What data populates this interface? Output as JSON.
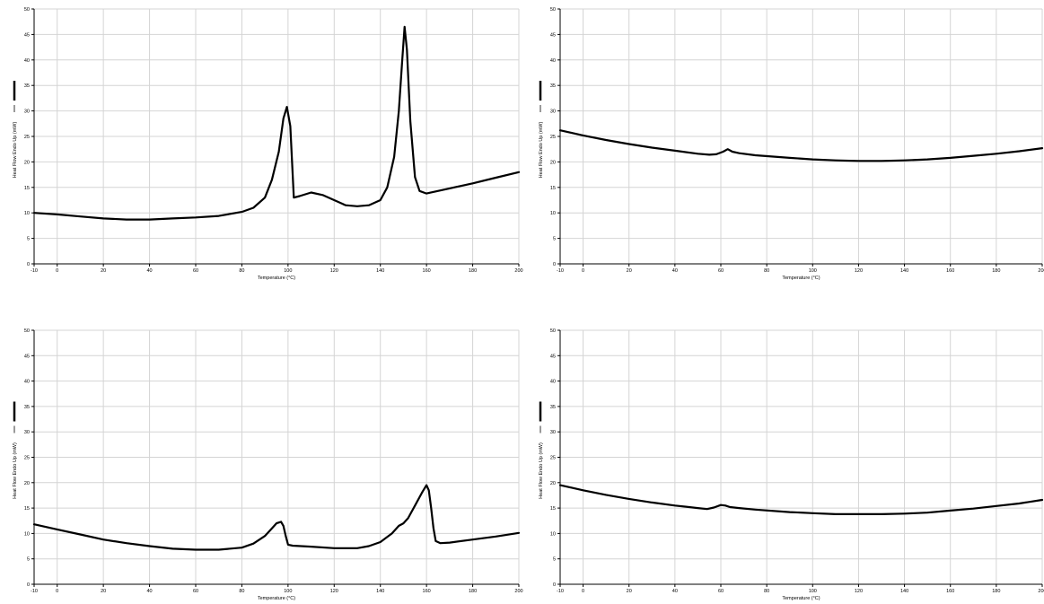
{
  "chart_data": [
    {
      "type": "line",
      "xlabel": "Temperature (°C)",
      "ylabel": "Heat Flow Endo Up (mW)",
      "xlim": [
        -10,
        200
      ],
      "ylim": [
        0,
        50
      ],
      "x_ticks": [
        "-10",
        "0",
        "20",
        "40",
        "60",
        "80",
        "100",
        "120",
        "140",
        "160",
        "180",
        "200"
      ],
      "y_ticks": [
        "0",
        "5",
        "10",
        "15",
        "20",
        "25",
        "30",
        "35",
        "40",
        "45",
        "50"
      ],
      "grid": true,
      "color": "#000000",
      "series": [
        {
          "x": [
            -10,
            0,
            10,
            20,
            30,
            40,
            50,
            60,
            70,
            80,
            85,
            90,
            93,
            96,
            98,
            99.5,
            101,
            102.5,
            105,
            110,
            115,
            120,
            125,
            130,
            135,
            140,
            143,
            146,
            148,
            149.5,
            150.5,
            151.5,
            153,
            155,
            157,
            160,
            170,
            180,
            190,
            200
          ],
          "y": [
            10.0,
            9.7,
            9.3,
            8.9,
            8.7,
            8.7,
            8.9,
            9.1,
            9.4,
            10.2,
            11.0,
            13.0,
            16.5,
            22.0,
            28.5,
            30.8,
            27.0,
            13.0,
            13.3,
            14.0,
            13.5,
            12.5,
            11.5,
            11.3,
            11.5,
            12.5,
            15.0,
            21.0,
            30.0,
            40.0,
            46.5,
            42.0,
            28.0,
            17.0,
            14.3,
            13.8,
            14.8,
            15.8,
            16.9,
            18.0
          ]
        }
      ]
    },
    {
      "type": "line",
      "xlabel": "Temperature (°C)",
      "ylabel": "Heat Flow Endo Up (mW)",
      "xlim": [
        -10,
        200
      ],
      "ylim": [
        0,
        50
      ],
      "x_ticks": [
        "-10",
        "0",
        "20",
        "40",
        "60",
        "80",
        "100",
        "120",
        "140",
        "160",
        "180",
        "200"
      ],
      "y_ticks": [
        "0",
        "5",
        "10",
        "15",
        "20",
        "25",
        "30",
        "35",
        "40",
        "45",
        "50"
      ],
      "grid": true,
      "color": "#000000",
      "series": [
        {
          "x": [
            -10,
            0,
            10,
            20,
            30,
            40,
            50,
            55,
            58,
            61,
            63,
            65,
            68,
            75,
            90,
            100,
            110,
            120,
            130,
            140,
            150,
            160,
            170,
            180,
            190,
            200
          ],
          "y": [
            26.2,
            25.2,
            24.3,
            23.5,
            22.8,
            22.2,
            21.6,
            21.4,
            21.5,
            22.0,
            22.5,
            22.0,
            21.7,
            21.3,
            20.8,
            20.5,
            20.3,
            20.2,
            20.2,
            20.3,
            20.5,
            20.8,
            21.2,
            21.6,
            22.1,
            22.7
          ]
        }
      ]
    },
    {
      "type": "line",
      "xlabel": "Temperature (°C)",
      "ylabel": "Heat Flow Endo Up (mW)",
      "xlim": [
        -10,
        200
      ],
      "ylim": [
        0,
        50
      ],
      "x_ticks": [
        "-10",
        "0",
        "20",
        "40",
        "60",
        "80",
        "100",
        "120",
        "140",
        "160",
        "180",
        "200"
      ],
      "y_ticks": [
        "0",
        "5",
        "10",
        "15",
        "20",
        "25",
        "30",
        "35",
        "40",
        "45",
        "50"
      ],
      "grid": true,
      "color": "#000000",
      "series": [
        {
          "x": [
            -10,
            0,
            10,
            20,
            30,
            40,
            50,
            60,
            70,
            80,
            85,
            90,
            93,
            95,
            97,
            98,
            99,
            100,
            102,
            110,
            120,
            130,
            135,
            140,
            145,
            148,
            150,
            152,
            155,
            158,
            160,
            161,
            162,
            163,
            164,
            166,
            170,
            180,
            190,
            200
          ],
          "y": [
            11.8,
            10.8,
            9.8,
            8.8,
            8.1,
            7.5,
            7.0,
            6.8,
            6.8,
            7.2,
            8.0,
            9.5,
            11.0,
            12.0,
            12.3,
            11.5,
            9.5,
            7.8,
            7.6,
            7.4,
            7.1,
            7.1,
            7.5,
            8.3,
            10.0,
            11.5,
            12.0,
            13.0,
            15.5,
            18.0,
            19.5,
            18.5,
            15.0,
            11.0,
            8.5,
            8.1,
            8.2,
            8.8,
            9.4,
            10.1
          ]
        }
      ]
    },
    {
      "type": "line",
      "xlabel": "Temperature (°C)",
      "ylabel": "Heat Flow Endo Up (mW)",
      "xlim": [
        -10,
        200
      ],
      "ylim": [
        0,
        50
      ],
      "x_ticks": [
        "-10",
        "0",
        "20",
        "40",
        "60",
        "80",
        "100",
        "120",
        "140",
        "160",
        "180",
        "200"
      ],
      "y_ticks": [
        "0",
        "5",
        "10",
        "15",
        "20",
        "25",
        "30",
        "35",
        "40",
        "45",
        "50"
      ],
      "grid": true,
      "color": "#000000",
      "series": [
        {
          "x": [
            -10,
            0,
            10,
            20,
            30,
            40,
            50,
            54,
            57,
            60,
            62,
            64,
            68,
            75,
            90,
            100,
            110,
            120,
            130,
            140,
            150,
            160,
            170,
            180,
            190,
            200
          ],
          "y": [
            19.5,
            18.5,
            17.6,
            16.8,
            16.1,
            15.5,
            15.0,
            14.8,
            15.1,
            15.6,
            15.5,
            15.2,
            15.0,
            14.7,
            14.2,
            14.0,
            13.8,
            13.8,
            13.8,
            13.9,
            14.1,
            14.5,
            14.9,
            15.4,
            15.9,
            16.6
          ]
        }
      ]
    }
  ]
}
